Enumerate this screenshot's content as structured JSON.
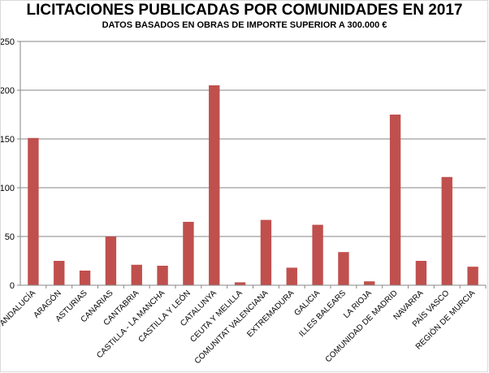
{
  "chart_data": {
    "type": "bar",
    "title": "LICITACIONES  PUBLICADAS  POR COMUNIDADES EN 2017",
    "subtitle": "DATOS BASADOS EN OBRAS DE IMPORTE SUPERIOR A 300.000 €",
    "xlabel": "",
    "ylabel": "",
    "ylim": [
      0,
      250
    ],
    "yticks": [
      0,
      50,
      100,
      150,
      200,
      250
    ],
    "grid": true,
    "legend": "none",
    "bar_color": "#c0504d",
    "categories": [
      "ANDALUCÍA",
      "ARAGÓN",
      "ASTURIAS",
      "CANARIAS",
      "CANTABRIA",
      "CASTILLA - LA MANCHA",
      "CASTILLA Y LEÓN",
      "CATALUNYA",
      "CEUTA Y MELILLA",
      "COMUNITAT VALENCIANA",
      "EXTREMADURA",
      "GALICIA",
      "ILLES BALEARS",
      "LA RIOJA",
      "COMUNIDAD DE MADRID",
      "NAVARRA",
      "PAÍS VASCO",
      "REGIÓN DE MURCIA"
    ],
    "values": [
      151,
      25,
      15,
      50,
      21,
      20,
      65,
      205,
      3,
      67,
      18,
      62,
      34,
      4,
      175,
      25,
      111,
      19
    ]
  }
}
